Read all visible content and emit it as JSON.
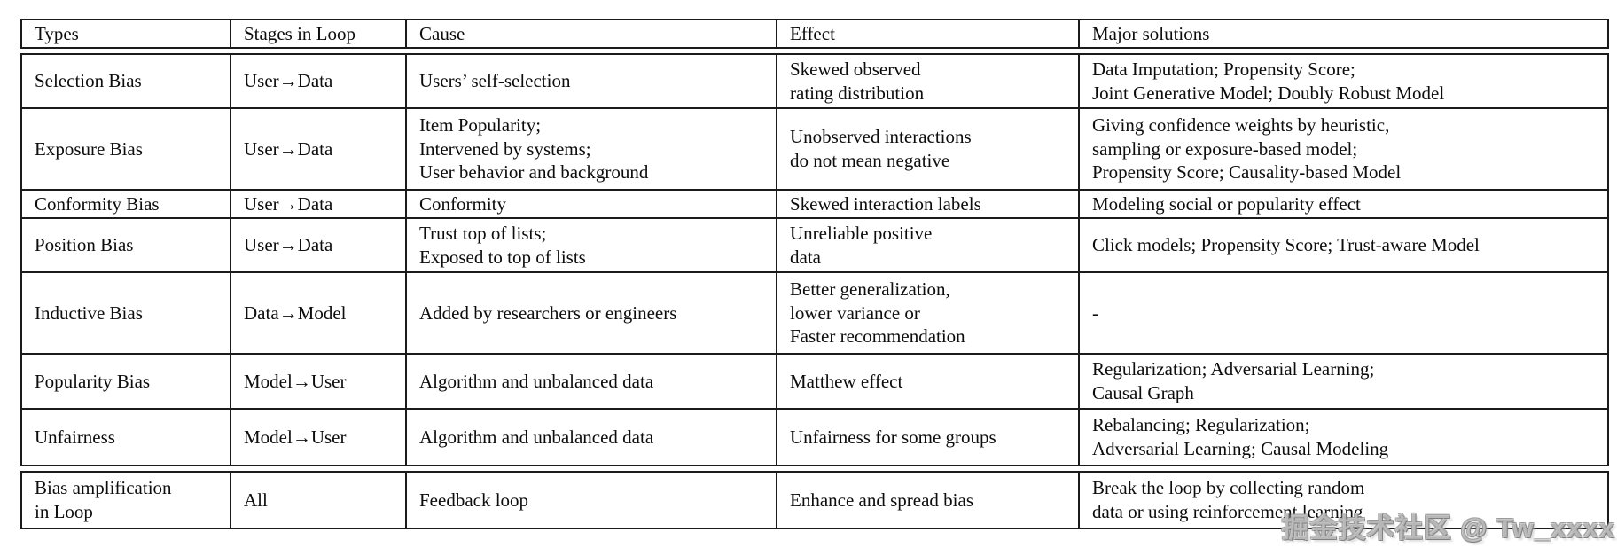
{
  "table": {
    "columns": [
      "Types",
      "Stages in Loop",
      "Cause",
      "Effect",
      "Major solutions"
    ],
    "rows": [
      {
        "type": "Selection Bias",
        "stage": "User→Data",
        "cause": "Users’ self-selection",
        "effect": "Skewed observed\nrating distribution",
        "solutions": "Data Imputation; Propensity Score;\nJoint Generative Model; Doubly Robust Model"
      },
      {
        "type": "Exposure Bias",
        "stage": "User→Data",
        "cause": "Item Popularity;\nIntervened by systems;\nUser behavior and background",
        "effect": "Unobserved interactions\ndo not mean negative",
        "solutions": "Giving confidence weights by heuristic,\nsampling or exposure-based model;\nPropensity Score; Causality-based Model"
      },
      {
        "type": "Conformity Bias",
        "stage": "User→Data",
        "cause": "Conformity",
        "effect": "Skewed interaction labels",
        "solutions": "Modeling social or popularity effect"
      },
      {
        "type": "Position Bias",
        "stage": "User→Data",
        "cause": "Trust top of lists;\nExposed to top of lists",
        "effect": "Unreliable positive\ndata",
        "solutions": "Click models; Propensity Score; Trust-aware Model"
      },
      {
        "type": "Inductive Bias",
        "stage": "Data→Model",
        "cause": "Added by researchers or engineers",
        "effect": "Better generalization,\nlower variance or\nFaster recommendation",
        "solutions": "-"
      },
      {
        "type": "Popularity Bias",
        "stage": "Model→User",
        "cause": "Algorithm and unbalanced data",
        "effect": "Matthew effect",
        "solutions": "Regularization; Adversarial Learning;\nCausal Graph"
      },
      {
        "type": "Unfairness",
        "stage": "Model→User",
        "cause": "Algorithm and unbalanced data",
        "effect": "Unfairness for some groups",
        "solutions": "Rebalancing; Regularization;\nAdversarial Learning; Causal Modeling"
      },
      {
        "type": "Bias amplification\nin Loop",
        "stage": "All",
        "cause": "Feedback loop",
        "effect": "Enhance and spread bias",
        "solutions": "Break the loop by collecting random\ndata or using reinforcement learning"
      }
    ]
  },
  "watermark": {
    "text": "掘金技术社区 @ Tw_xxxx",
    "color": "#9a9a9a"
  }
}
